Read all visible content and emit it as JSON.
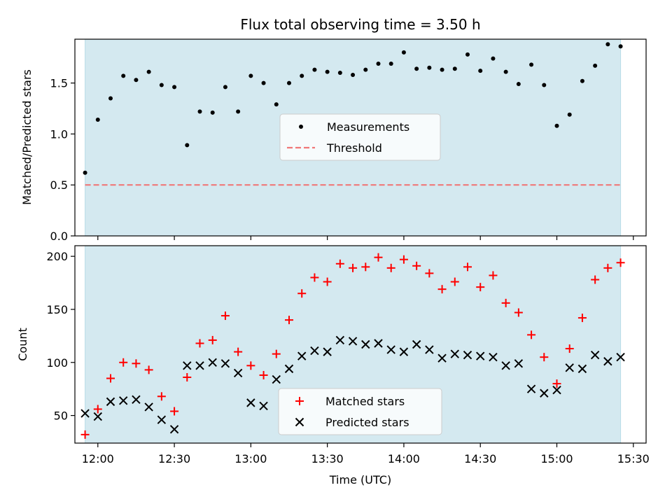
{
  "chart_data": [
    {
      "type": "scatter",
      "title": "Flux total observing time = 3.50 h",
      "xlabel": "",
      "ylabel": "Matched/Predicted stars",
      "xlim": [
        "11:51",
        "15:35"
      ],
      "ylim": [
        0,
        1.93
      ],
      "yticks": [
        0.0,
        0.5,
        1.0,
        1.5
      ],
      "ytick_labels": [
        "0.0",
        "0.5",
        "1.0",
        "1.5"
      ],
      "xticks": [
        "12:00",
        "12:30",
        "13:00",
        "13:30",
        "14:00",
        "14:30",
        "15:00",
        "15:30"
      ],
      "shaded_region": {
        "from": "11:55",
        "to": "15:25",
        "color": "#d4e9f0"
      },
      "legend_position": "center",
      "series": [
        {
          "name": "Measurements",
          "marker": "dot",
          "color": "#000000",
          "x": [
            "11:55",
            "12:00",
            "12:05",
            "12:10",
            "12:15",
            "12:20",
            "12:25",
            "12:30",
            "12:35",
            "12:40",
            "12:45",
            "12:50",
            "12:55",
            "13:00",
            "13:05",
            "13:10",
            "13:15",
            "13:20",
            "13:25",
            "13:30",
            "13:35",
            "13:40",
            "13:45",
            "13:50",
            "13:55",
            "14:00",
            "14:05",
            "14:10",
            "14:15",
            "14:20",
            "14:25",
            "14:30",
            "14:35",
            "14:40",
            "14:45",
            "14:50",
            "14:55",
            "15:00",
            "15:05",
            "15:10",
            "15:15",
            "15:20",
            "15:25"
          ],
          "y": [
            0.62,
            1.14,
            1.35,
            1.57,
            1.53,
            1.61,
            1.48,
            1.46,
            0.89,
            1.22,
            1.21,
            1.46,
            1.22,
            1.57,
            1.5,
            1.29,
            1.5,
            1.57,
            1.63,
            1.61,
            1.6,
            1.58,
            1.63,
            1.69,
            1.69,
            1.8,
            1.64,
            1.65,
            1.63,
            1.64,
            1.78,
            1.62,
            1.74,
            1.61,
            1.49,
            1.68,
            1.48,
            1.08,
            1.19,
            1.52,
            1.67,
            1.88,
            1.86
          ]
        },
        {
          "name": "Threshold",
          "marker": "dashed-line",
          "color": "#f07878",
          "x": [
            "11:55",
            "15:25"
          ],
          "y": [
            0.5,
            0.5
          ]
        }
      ]
    },
    {
      "type": "scatter",
      "title": "",
      "xlabel": "Time (UTC)",
      "ylabel": "Count",
      "xlim": [
        "11:51",
        "15:35"
      ],
      "ylim": [
        24,
        210
      ],
      "yticks": [
        50,
        100,
        150,
        200
      ],
      "xticks": [
        "12:00",
        "12:30",
        "13:00",
        "13:30",
        "14:00",
        "14:30",
        "15:00",
        "15:30"
      ],
      "xtick_labels": [
        "12:00",
        "12:30",
        "13:00",
        "13:30",
        "14:00",
        "14:30",
        "15:00",
        "15:30"
      ],
      "shaded_region": {
        "from": "11:55",
        "to": "15:25",
        "color": "#d4e9f0"
      },
      "legend_position": "lower center",
      "series": [
        {
          "name": "Matched stars",
          "marker": "plus",
          "color": "#ff0000",
          "x": [
            "11:55",
            "12:00",
            "12:05",
            "12:10",
            "12:15",
            "12:20",
            "12:25",
            "12:30",
            "12:35",
            "12:40",
            "12:45",
            "12:50",
            "12:55",
            "13:00",
            "13:05",
            "13:10",
            "13:15",
            "13:20",
            "13:25",
            "13:30",
            "13:35",
            "13:40",
            "13:45",
            "13:50",
            "13:55",
            "14:00",
            "14:05",
            "14:10",
            "14:15",
            "14:20",
            "14:25",
            "14:30",
            "14:35",
            "14:40",
            "14:45",
            "14:50",
            "14:55",
            "15:00",
            "15:05",
            "15:10",
            "15:15",
            "15:20",
            "15:25"
          ],
          "y": [
            32,
            56,
            85,
            100,
            99,
            93,
            68,
            54,
            86,
            118,
            121,
            144,
            110,
            97,
            88,
            108,
            140,
            165,
            180,
            176,
            193,
            189,
            190,
            199,
            189,
            197,
            191,
            184,
            169,
            176,
            190,
            171,
            182,
            156,
            147,
            126,
            105,
            80,
            113,
            142,
            178,
            189,
            194
          ]
        },
        {
          "name": "Predicted stars",
          "marker": "x",
          "color": "#000000",
          "x": [
            "11:55",
            "12:00",
            "12:05",
            "12:10",
            "12:15",
            "12:20",
            "12:25",
            "12:30",
            "12:35",
            "12:40",
            "12:45",
            "12:50",
            "12:55",
            "13:00",
            "13:05",
            "13:10",
            "13:15",
            "13:20",
            "13:25",
            "13:30",
            "13:35",
            "13:40",
            "13:45",
            "13:50",
            "13:55",
            "14:00",
            "14:05",
            "14:10",
            "14:15",
            "14:20",
            "14:25",
            "14:30",
            "14:35",
            "14:40",
            "14:45",
            "14:50",
            "14:55",
            "15:00",
            "15:05",
            "15:10",
            "15:15",
            "15:20",
            "15:25"
          ],
          "y": [
            52,
            49,
            63,
            64,
            65,
            58,
            46,
            37,
            97,
            97,
            100,
            99,
            90,
            62,
            59,
            84,
            94,
            106,
            111,
            110,
            121,
            120,
            117,
            118,
            112,
            110,
            117,
            112,
            104,
            108,
            107,
            106,
            105,
            97,
            99,
            75,
            71,
            74,
            95,
            94,
            107,
            101,
            105
          ]
        }
      ]
    }
  ]
}
